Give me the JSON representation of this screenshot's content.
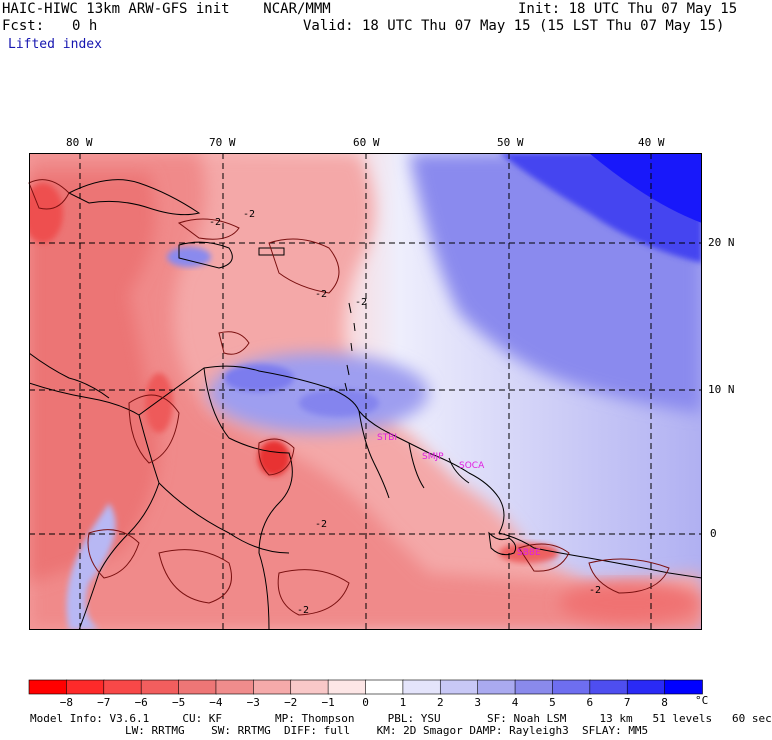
{
  "header": {
    "model_line": "HAIC-HIWC 13km ARW-GFS init    NCAR/MMM",
    "init_line": "Init: 18 UTC Thu 07 May 15",
    "fcst_label": "Fcst:",
    "fcst_value": "0 h",
    "valid_line": "Valid: 18 UTC Thu 07 May 15 (15 LST Thu 07 May 15)",
    "field_name": "Lifted index"
  },
  "map": {
    "lon_labels": [
      "80 W",
      "70 W",
      "60 W",
      "50 W",
      "40 W"
    ],
    "lat_labels": [
      "20 N",
      "10 N",
      "0"
    ],
    "contour_labels": [
      "-2",
      "-2",
      "-2",
      "-2",
      "-2",
      "-2",
      "-2"
    ],
    "stations": [
      "STBI",
      "SMJP",
      "SOCA",
      "SBBE"
    ],
    "station_color": "#e020e0"
  },
  "colorbar": {
    "labels": [
      "−8",
      "−7",
      "−6",
      "−5",
      "−4",
      "−3",
      "−2",
      "−1",
      "0",
      "1",
      "2",
      "3",
      "4",
      "5",
      "6",
      "7",
      "8"
    ],
    "unit": "°C",
    "colors": [
      "#ff0000",
      "#fe2a2a",
      "#f84848",
      "#f25e5e",
      "#ee7676",
      "#f08c8c",
      "#f5aaaa",
      "#f9c8c8",
      "#fde6e6",
      "#ffffff",
      "#e4e4fb",
      "#c8c8f6",
      "#aaaaf0",
      "#8a8aec",
      "#6e6ef0",
      "#4e4ef0",
      "#2a2af6",
      "#0000ff"
    ]
  },
  "footer": {
    "line1": "Model Info: V3.6.1     CU: KF        MP: Thompson     PBL: YSU       SF: Noah LSM     13 km   51 levels   60 sec",
    "line2": "LW: RRTMG    SW: RRTMG  DIFF: full    KM: 2D Smagor DAMP: Rayleigh3  SFLAY: MM5"
  }
}
